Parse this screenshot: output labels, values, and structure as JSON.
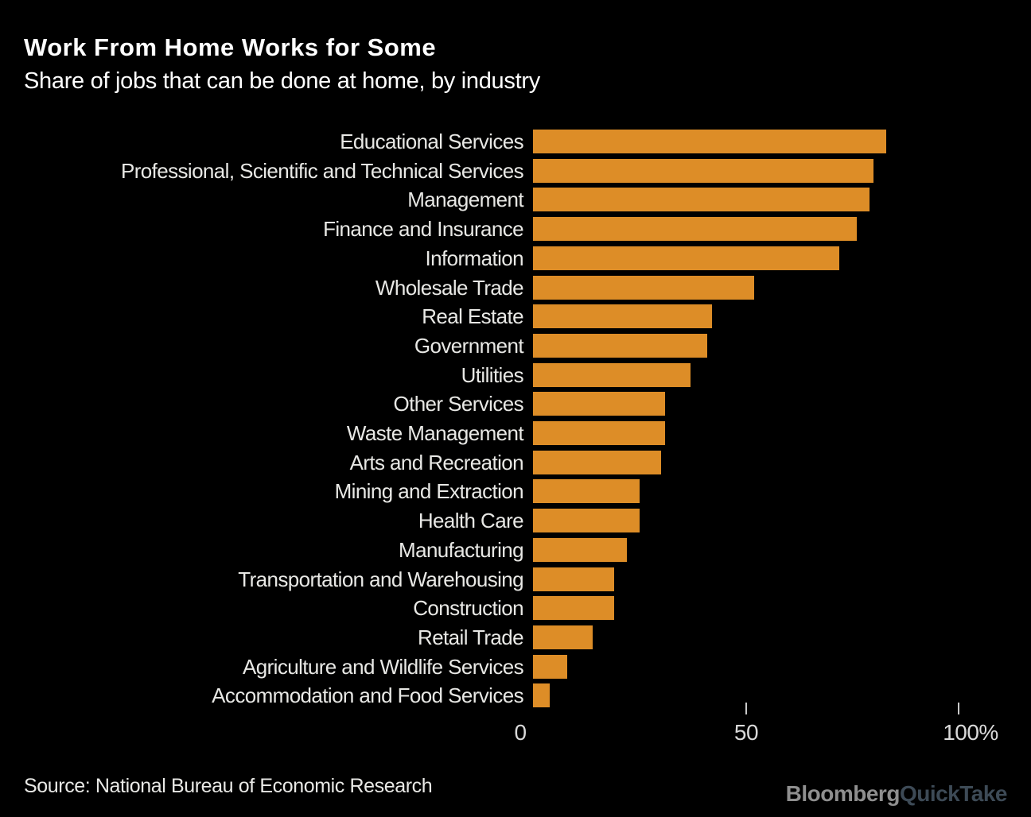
{
  "header": {
    "title": "Work From Home Works for Some",
    "subtitle": "Share of jobs that can be done at home, by industry"
  },
  "chart_data": {
    "type": "bar",
    "orientation": "horizontal",
    "title": "Work From Home Works for Some",
    "subtitle": "Share of jobs that can be done at home, by industry",
    "unit": "percent",
    "categories": [
      "Educational Services",
      "Professional, Scientific and Technical Services",
      "Management",
      "Finance and Insurance",
      "Information",
      "Wholesale Trade",
      "Real Estate",
      "Government",
      "Utilities",
      "Other Services",
      "Waste Management",
      "Arts and Recreation",
      "Mining and Extraction",
      "Health Care",
      "Manufacturing",
      "Transportation and Warehousing",
      "Construction",
      "Retail Trade",
      "Agriculture and Wildlife Services",
      "Accommodation and Food Services"
    ],
    "values": [
      83,
      80,
      79,
      76,
      72,
      52,
      42,
      41,
      37,
      31,
      31,
      30,
      25,
      25,
      22,
      19,
      19,
      14,
      8,
      4
    ],
    "xlim": [
      0,
      100
    ],
    "x_ticks": [
      {
        "value": 0,
        "label": "0",
        "mark": false
      },
      {
        "value": 50,
        "label": "50",
        "mark": true
      },
      {
        "value": 100,
        "label": "100%",
        "mark": true
      }
    ],
    "grid": false,
    "legend": false,
    "bar_color": "#DD8D27",
    "background_color": "#000000",
    "label_color": "#E8E8E5",
    "axis_text_color": "#D9D9D9"
  },
  "footer": {
    "source": "Source: National Bureau of Economic Research",
    "logo": {
      "part1": "Bloomberg",
      "part2": "QuickTake",
      "part1_color": "#8F8F8F",
      "part2_color": "#3D4A56"
    }
  }
}
